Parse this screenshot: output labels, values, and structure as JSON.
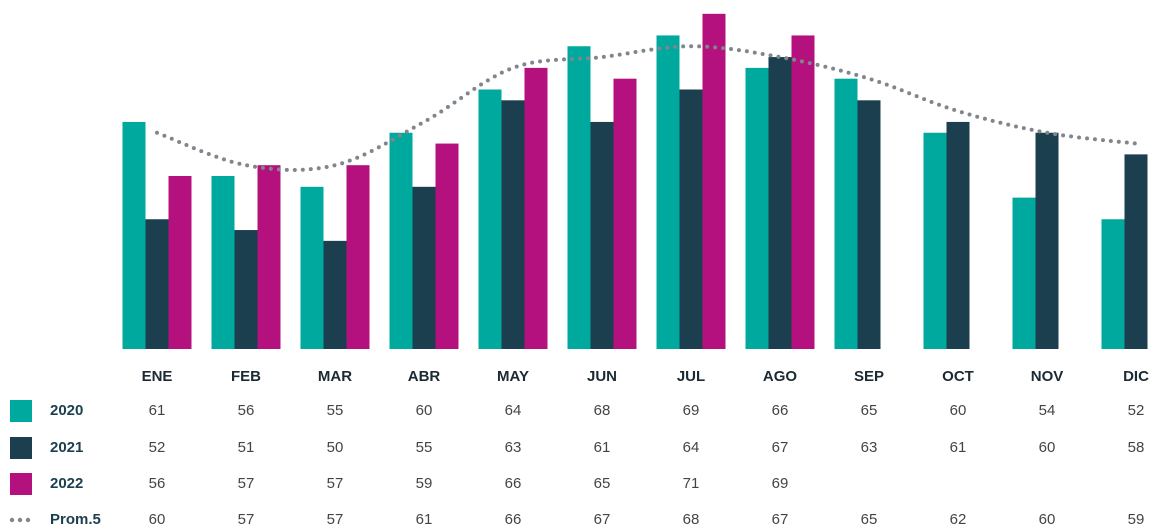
{
  "chart_data": {
    "type": "bar",
    "categories": [
      "ENE",
      "FEB",
      "MAR",
      "ABR",
      "MAY",
      "JUN",
      "JUL",
      "AGO",
      "SEP",
      "OCT",
      "NOV",
      "DIC"
    ],
    "series": [
      {
        "name": "2020",
        "color": "#00a99d",
        "values": [
          61,
          56,
          55,
          60,
          64,
          68,
          69,
          66,
          65,
          60,
          54,
          52
        ]
      },
      {
        "name": "2021",
        "color": "#1b3f4e",
        "values": [
          52,
          51,
          50,
          55,
          63,
          61,
          64,
          67,
          63,
          61,
          60,
          58
        ]
      },
      {
        "name": "2022",
        "color": "#b5117e",
        "values": [
          56,
          57,
          57,
          59,
          66,
          65,
          71,
          69,
          null,
          null,
          null,
          null
        ]
      },
      {
        "name": "Prom.5",
        "color": "#7f868c",
        "type": "line",
        "dash": "dotted",
        "values": [
          60,
          57,
          57,
          61,
          66,
          67,
          68,
          67,
          65,
          62,
          60,
          59
        ]
      }
    ],
    "ylim": [
      40,
      72
    ]
  }
}
